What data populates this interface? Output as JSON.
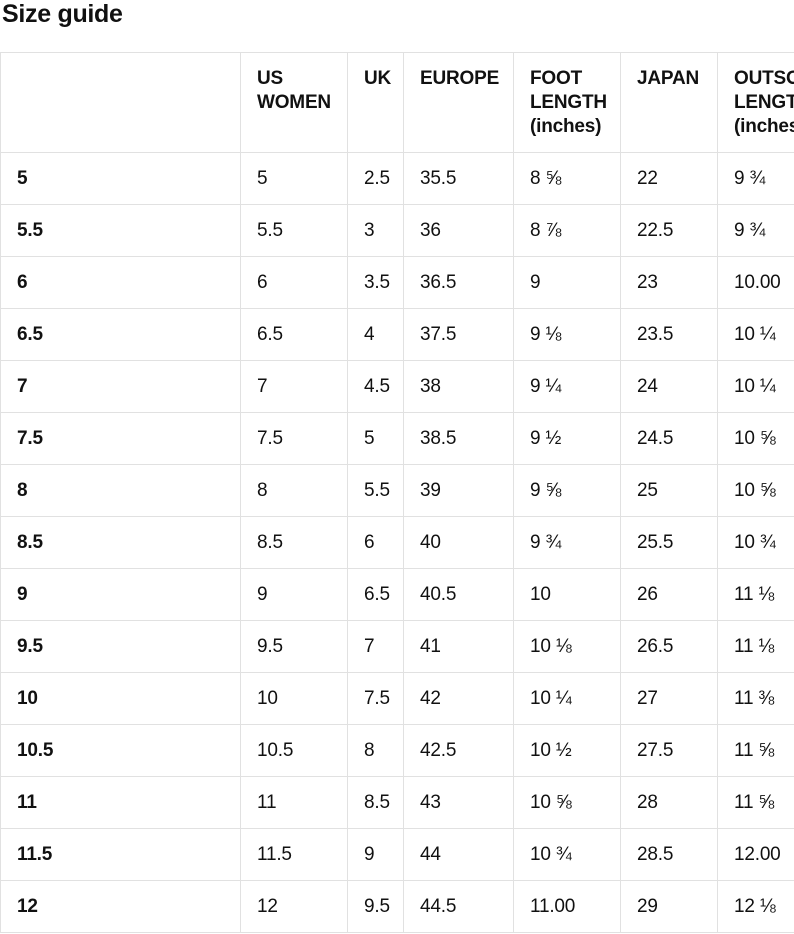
{
  "title": "Size guide",
  "colors": {
    "background": "#ffffff",
    "text": "#111111",
    "border": "#e1e1e1"
  },
  "table": {
    "headers": [
      "",
      "US WOMEN",
      "UK",
      "EUROPE",
      "FOOT LENGTH (inches)",
      "JAPAN",
      "OUTSOLE LENGTH (inches)"
    ],
    "rows": [
      {
        "label": "5",
        "values": [
          "5",
          "2.5",
          "35.5",
          "8 ⅝",
          "22",
          "9 ¾"
        ]
      },
      {
        "label": "5.5",
        "values": [
          "5.5",
          "3",
          "36",
          "8 ⅞",
          "22.5",
          "9 ¾"
        ]
      },
      {
        "label": "6",
        "values": [
          "6",
          "3.5",
          "36.5",
          "9",
          "23",
          "10.00"
        ]
      },
      {
        "label": "6.5",
        "values": [
          "6.5",
          "4",
          "37.5",
          "9 ⅛",
          "23.5",
          "10 ¼"
        ]
      },
      {
        "label": "7",
        "values": [
          "7",
          "4.5",
          "38",
          "9 ¼",
          "24",
          "10 ¼"
        ]
      },
      {
        "label": "7.5",
        "values": [
          "7.5",
          "5",
          "38.5",
          "9 ½",
          "24.5",
          "10 ⅝"
        ]
      },
      {
        "label": "8",
        "values": [
          "8",
          "5.5",
          "39",
          "9 ⅝",
          "25",
          "10 ⅝"
        ]
      },
      {
        "label": "8.5",
        "values": [
          "8.5",
          "6",
          "40",
          "9 ¾",
          "25.5",
          "10 ¾"
        ]
      },
      {
        "label": "9",
        "values": [
          "9",
          "6.5",
          "40.5",
          "10",
          "26",
          "11 ⅛"
        ]
      },
      {
        "label": "9.5",
        "values": [
          "9.5",
          "7",
          "41",
          "10 ⅛",
          "26.5",
          "11 ⅛"
        ]
      },
      {
        "label": "10",
        "values": [
          "10",
          "7.5",
          "42",
          "10 ¼",
          "27",
          "11 ⅜"
        ]
      },
      {
        "label": "10.5",
        "values": [
          "10.5",
          "8",
          "42.5",
          "10 ½",
          "27.5",
          "11 ⅝"
        ]
      },
      {
        "label": "11",
        "values": [
          "11",
          "8.5",
          "43",
          "10 ⅝",
          "28",
          "11 ⅝"
        ]
      },
      {
        "label": "11.5",
        "values": [
          "11.5",
          "9",
          "44",
          "10 ¾",
          "28.5",
          "12.00"
        ]
      },
      {
        "label": "12",
        "values": [
          "12",
          "9.5",
          "44.5",
          "11.00",
          "29",
          "12 ⅛"
        ]
      }
    ]
  }
}
